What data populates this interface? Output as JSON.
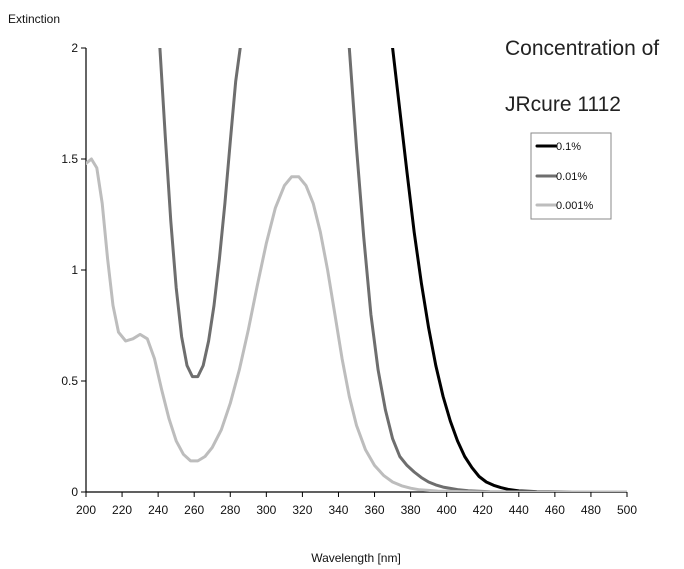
{
  "chart_data": {
    "type": "line",
    "title_lines": [
      "Concentration of",
      "JRcure 1112"
    ],
    "xlabel": "Wavelength [nm]",
    "ylabel": "Extinction",
    "xlim": [
      200,
      500
    ],
    "ylim": [
      0,
      2
    ],
    "x_ticks": [
      200,
      220,
      240,
      260,
      280,
      300,
      320,
      340,
      360,
      380,
      400,
      420,
      440,
      460,
      480,
      500
    ],
    "y_ticks": [
      0,
      0.5,
      1,
      1.5,
      2
    ],
    "y_tick_labels": [
      "0",
      "0.5",
      "1",
      "1.5",
      "2"
    ],
    "grid": false,
    "legend_position": "top-right",
    "series": [
      {
        "name": "0.1%",
        "color": "#000000",
        "x": [
          370,
          374,
          378,
          382,
          386,
          390,
          394,
          398,
          402,
          406,
          410,
          414,
          418,
          422,
          426,
          430,
          434,
          440,
          450,
          470,
          500
        ],
        "y": [
          2.0,
          1.72,
          1.44,
          1.17,
          0.94,
          0.74,
          0.57,
          0.43,
          0.32,
          0.23,
          0.16,
          0.11,
          0.07,
          0.045,
          0.03,
          0.02,
          0.012,
          0.005,
          0.002,
          0,
          0
        ]
      },
      {
        "name": "0.01%",
        "color": "#6e6e6e",
        "x": [
          241,
          244,
          247,
          250,
          253,
          256,
          259,
          262,
          265,
          268,
          271,
          274,
          277,
          280,
          283,
          285.5,
          null,
          346,
          350,
          354,
          358,
          362,
          366,
          370,
          374,
          378,
          382,
          386,
          390,
          394,
          398,
          402,
          406,
          412,
          418,
          424,
          440,
          460,
          500
        ],
        "y": [
          2.0,
          1.6,
          1.22,
          0.92,
          0.7,
          0.57,
          0.52,
          0.52,
          0.57,
          0.68,
          0.84,
          1.05,
          1.3,
          1.58,
          1.85,
          2.0,
          null,
          2.0,
          1.55,
          1.15,
          0.8,
          0.55,
          0.37,
          0.24,
          0.16,
          0.12,
          0.09,
          0.065,
          0.045,
          0.032,
          0.022,
          0.016,
          0.011,
          0.006,
          0.003,
          0.001,
          0,
          0,
          0
        ]
      },
      {
        "name": "0.001%",
        "color": "#bdbdbd",
        "x": [
          200,
          203,
          206,
          209,
          212,
          215,
          218,
          222,
          226,
          230,
          234,
          238,
          242,
          246,
          250,
          254,
          258,
          262,
          266,
          270,
          275,
          280,
          285,
          290,
          295,
          300,
          305,
          310,
          314,
          318,
          322,
          326,
          330,
          334,
          338,
          342,
          346,
          350,
          355,
          360,
          365,
          370,
          375,
          380,
          385,
          390,
          395,
          400,
          410,
          420,
          440,
          460,
          500
        ],
        "y": [
          1.48,
          1.5,
          1.46,
          1.3,
          1.05,
          0.84,
          0.72,
          0.68,
          0.69,
          0.71,
          0.69,
          0.6,
          0.46,
          0.33,
          0.23,
          0.17,
          0.14,
          0.14,
          0.16,
          0.2,
          0.28,
          0.4,
          0.55,
          0.73,
          0.93,
          1.12,
          1.28,
          1.38,
          1.42,
          1.42,
          1.38,
          1.3,
          1.17,
          1.0,
          0.8,
          0.6,
          0.43,
          0.3,
          0.19,
          0.12,
          0.075,
          0.045,
          0.028,
          0.017,
          0.01,
          0.007,
          0.004,
          0.003,
          0.001,
          0,
          0,
          0,
          0
        ]
      }
    ]
  }
}
